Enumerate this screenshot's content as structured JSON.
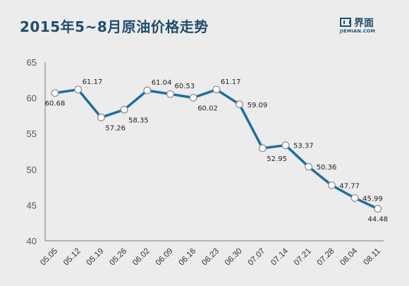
{
  "header": {
    "title": "2015年5~8月原油价格走势",
    "logo_name": "界面",
    "logo_sub": "JIEMIAN.COM"
  },
  "colors": {
    "background": "#ececec",
    "line": "#1a6fa0",
    "title": "#1f4e6e",
    "axis": "#777777"
  },
  "chart_data": {
    "type": "line",
    "title": "2015年5~8月原油价格走势",
    "xlabel": "",
    "ylabel": "",
    "grid": false,
    "categories": [
      "05.05",
      "05.12",
      "05.19",
      "05.26",
      "06.02",
      "06.09",
      "06.16",
      "06.23",
      "06.30",
      "07.07",
      "07.14",
      "07.21",
      "07.28",
      "08.04",
      "08.11"
    ],
    "series": [
      {
        "values": [
          60.68,
          61.17,
          57.26,
          58.35,
          61.04,
          60.53,
          60.02,
          61.17,
          59.09,
          52.95,
          53.37,
          50.36,
          47.77,
          45.99,
          44.48
        ]
      }
    ],
    "data_labels": [
      "60.68",
      "61.17",
      "57.26",
      "58.35",
      "61.04",
      "60.53",
      "60.02",
      "61.17",
      "59.09",
      "52.95",
      "53.37",
      "50.36",
      "47.77",
      "45.99",
      "44.48"
    ],
    "ylim": [
      40,
      65
    ],
    "yticks": [
      "40",
      "45",
      "50",
      "55",
      "60",
      "65"
    ]
  }
}
